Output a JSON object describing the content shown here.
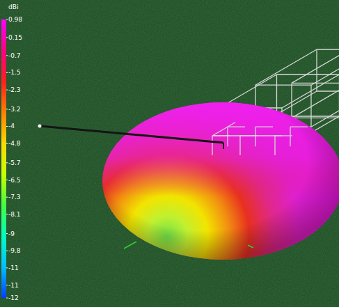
{
  "chart_data": {
    "type": "radiation_pattern",
    "colorbar": {
      "label": "dBi",
      "range": [
        -12,
        0.98
      ],
      "ticks": [
        0.98,
        0.15,
        -0.7,
        -1.5,
        -2.3,
        -3.2,
        -4,
        -4.8,
        -5.7,
        -6.5,
        -7.3,
        -8.1,
        -9,
        -9.8,
        {
          "value": -10.6,
          "label": "-11"
        },
        {
          "value": -11.4,
          "label": "-11"
        },
        -12
      ]
    }
  }
}
